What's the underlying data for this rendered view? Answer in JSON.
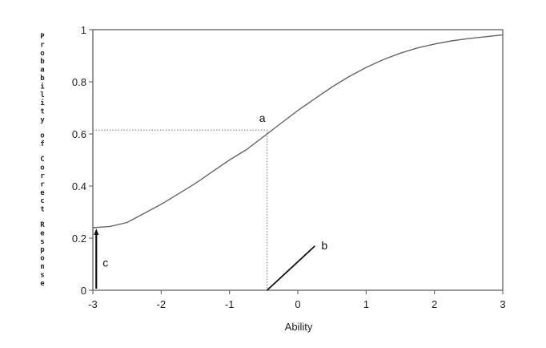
{
  "chart_data": {
    "type": "line",
    "title": "",
    "xlabel": "Ability",
    "ylabel": "Probability of Correct Response",
    "xlim": [
      -3,
      3
    ],
    "ylim": [
      0,
      1
    ],
    "x_ticks": [
      "-3",
      "-2",
      "-1",
      "0",
      "1",
      "2",
      "3"
    ],
    "y_ticks": [
      "0",
      "0.2",
      "0.4",
      "0.6",
      "0.8",
      "1"
    ],
    "grid": false,
    "series": [
      {
        "x": [
          -3.0,
          -2.75,
          -2.5,
          -2.25,
          -2.0,
          -1.75,
          -1.5,
          -1.25,
          -1.0,
          -0.75,
          -0.5,
          -0.25,
          0.0,
          0.25,
          0.5,
          0.75,
          1.0,
          1.25,
          1.5,
          1.75,
          2.0,
          2.25,
          2.5,
          2.75,
          3.0
        ],
        "y": [
          0.24,
          0.245,
          0.26,
          0.295,
          0.33,
          0.37,
          0.41,
          0.455,
          0.5,
          0.54,
          0.59,
          0.64,
          0.69,
          0.735,
          0.78,
          0.82,
          0.855,
          0.885,
          0.91,
          0.93,
          0.945,
          0.957,
          0.966,
          0.973,
          0.98
        ]
      }
    ],
    "annotations": [
      {
        "label": "a",
        "note": "point on curve",
        "x": -0.45,
        "y": 0.615
      },
      {
        "label": "b",
        "note": "slope line at inflection",
        "x0": -0.45,
        "y0": 0.0,
        "x1": 0.25,
        "y1": 0.17
      },
      {
        "label": "c",
        "note": "lower asymptote arrow",
        "x": -2.95,
        "y0": 0.0,
        "y1": 0.24
      }
    ],
    "reference": {
      "x": -0.45,
      "y": 0.615
    }
  }
}
